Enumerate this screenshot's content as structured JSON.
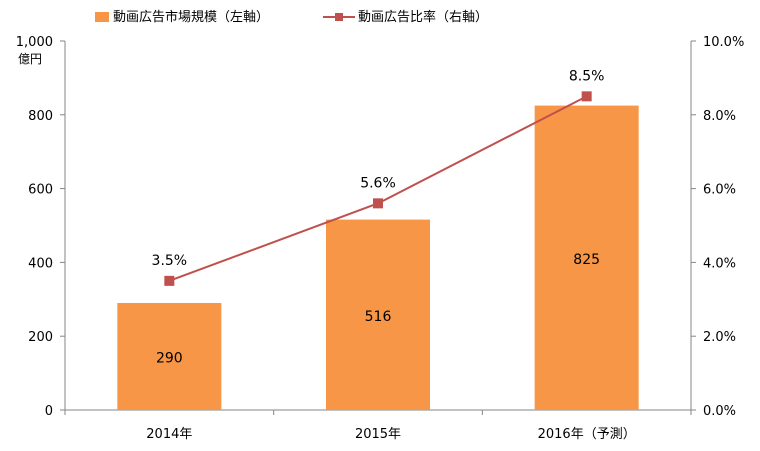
{
  "chart_data": {
    "type": "bar",
    "categories": [
      "2014年",
      "2015年",
      "2016年（予測）"
    ],
    "series": [
      {
        "name": "動画広告市場規模（左軸）",
        "type": "bar",
        "axis": "left",
        "values": [
          290,
          516,
          825
        ],
        "value_labels": [
          "290",
          "516",
          "825"
        ],
        "color": "#F79646"
      },
      {
        "name": "動画広告比率（右軸）",
        "type": "line",
        "axis": "right",
        "values": [
          3.5,
          5.6,
          8.5
        ],
        "value_labels": [
          "3.5%",
          "5.6%",
          "8.5%"
        ],
        "color": "#C0504D"
      }
    ],
    "y_left": {
      "range": [
        0,
        1000
      ],
      "ticks": [
        0,
        200,
        400,
        600,
        800,
        1000
      ],
      "tick_labels": [
        "0",
        "200",
        "400",
        "600",
        "800",
        "1,000"
      ],
      "unit": "億円"
    },
    "y_right": {
      "range": [
        0,
        10
      ],
      "ticks": [
        0,
        2,
        4,
        6,
        8,
        10
      ],
      "tick_labels": [
        "0.0%",
        "2.0%",
        "4.0%",
        "6.0%",
        "8.0%",
        "10.0%"
      ]
    },
    "legend_position": "top",
    "grid": false
  }
}
